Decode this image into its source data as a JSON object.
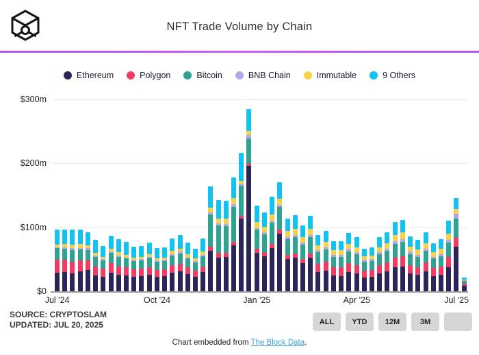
{
  "header": {
    "title": "NFT Trade Volume by Chain"
  },
  "legend": [
    {
      "name": "Ethereum",
      "color": "#2B2559"
    },
    {
      "name": "Polygon",
      "color": "#F23B63"
    },
    {
      "name": "Bitcoin",
      "color": "#2FA392"
    },
    {
      "name": "BNB Chain",
      "color": "#B3A8E3"
    },
    {
      "name": "Immutable",
      "color": "#F6D24A"
    },
    {
      "name": "9 Others",
      "color": "#12C2F0"
    }
  ],
  "chart_data": {
    "type": "bar",
    "stacked": true,
    "title": "NFT Trade Volume by Chain",
    "unit": "millions USD per week",
    "ylim": [
      0,
      300
    ],
    "grid": "horizontal",
    "legend_position": "top",
    "y_ticks": [
      {
        "value": 0,
        "label": "$0"
      },
      {
        "value": 100,
        "label": "$100m"
      },
      {
        "value": 200,
        "label": "$200m"
      },
      {
        "value": 300,
        "label": "$300m"
      }
    ],
    "x_ticks": [
      {
        "index": 0,
        "label": "Jul '24"
      },
      {
        "index": 13,
        "label": "Oct '24"
      },
      {
        "index": 26,
        "label": "Jan '25"
      },
      {
        "index": 39,
        "label": "Apr '25"
      },
      {
        "index": 52,
        "label": "Jul '25"
      }
    ],
    "series_names": [
      "Ethereum",
      "Polygon",
      "Bitcoin",
      "BNB Chain",
      "Immutable",
      "9 Others"
    ],
    "series_colors": [
      "#2B2559",
      "#F23B63",
      "#2FA392",
      "#B3A8E3",
      "#F6D24A",
      "#12C2F0"
    ],
    "bars": [
      [
        29,
        20,
        18,
        2,
        4,
        24
      ],
      [
        30,
        19,
        17,
        3,
        5,
        23
      ],
      [
        28,
        18,
        18,
        3,
        6,
        24
      ],
      [
        31,
        17,
        17,
        3,
        6,
        23
      ],
      [
        33,
        15,
        16,
        3,
        5,
        20
      ],
      [
        25,
        14,
        15,
        2,
        4,
        20
      ],
      [
        23,
        12,
        13,
        2,
        4,
        17
      ],
      [
        29,
        15,
        16,
        2,
        5,
        20
      ],
      [
        26,
        13,
        15,
        2,
        5,
        20
      ],
      [
        25,
        12,
        14,
        2,
        4,
        20
      ],
      [
        23,
        11,
        13,
        2,
        4,
        17
      ],
      [
        24,
        11,
        13,
        2,
        4,
        17
      ],
      [
        26,
        12,
        14,
        2,
        4,
        18
      ],
      [
        23,
        10,
        13,
        2,
        4,
        16
      ],
      [
        24,
        10,
        13,
        2,
        4,
        16
      ],
      [
        29,
        12,
        15,
        2,
        5,
        20
      ],
      [
        31,
        12,
        16,
        3,
        5,
        21
      ],
      [
        27,
        10,
        14,
        2,
        5,
        18
      ],
      [
        23,
        9,
        13,
        2,
        4,
        16
      ],
      [
        30,
        9,
        16,
        2,
        5,
        21
      ],
      [
        63,
        7,
        50,
        3,
        8,
        33
      ],
      [
        53,
        7,
        43,
        3,
        8,
        29
      ],
      [
        54,
        6,
        42,
        3,
        9,
        27
      ],
      [
        72,
        5,
        55,
        4,
        10,
        32
      ],
      [
        114,
        4,
        47,
        3,
        5,
        44
      ],
      [
        196,
        3,
        40,
        5,
        7,
        34
      ],
      [
        60,
        6,
        30,
        3,
        9,
        26
      ],
      [
        55,
        6,
        28,
        3,
        9,
        22
      ],
      [
        67,
        7,
        33,
        3,
        10,
        28
      ],
      [
        90,
        6,
        36,
        3,
        10,
        25
      ],
      [
        50,
        7,
        25,
        3,
        9,
        20
      ],
      [
        52,
        7,
        26,
        3,
        10,
        21
      ],
      [
        44,
        6,
        23,
        3,
        9,
        18
      ],
      [
        53,
        6,
        26,
        3,
        9,
        21
      ],
      [
        30,
        13,
        18,
        3,
        8,
        16
      ],
      [
        32,
        14,
        19,
        4,
        8,
        17
      ],
      [
        25,
        13,
        16,
        3,
        7,
        14
      ],
      [
        24,
        14,
        16,
        3,
        7,
        14
      ],
      [
        30,
        14,
        18,
        4,
        8,
        17
      ],
      [
        28,
        13,
        17,
        3,
        8,
        16
      ],
      [
        21,
        11,
        14,
        3,
        6,
        12
      ],
      [
        22,
        11,
        14,
        3,
        6,
        13
      ],
      [
        28,
        13,
        17,
        3,
        8,
        16
      ],
      [
        31,
        14,
        18,
        4,
        8,
        17
      ],
      [
        37,
        16,
        21,
        4,
        10,
        20
      ],
      [
        39,
        16,
        22,
        5,
        10,
        20
      ],
      [
        28,
        13,
        17,
        4,
        8,
        16
      ],
      [
        26,
        12,
        16,
        3,
        8,
        15
      ],
      [
        31,
        14,
        18,
        4,
        8,
        17
      ],
      [
        24,
        12,
        15,
        3,
        7,
        14
      ],
      [
        26,
        13,
        16,
        3,
        8,
        15
      ],
      [
        38,
        16,
        22,
        4,
        10,
        20
      ],
      [
        70,
        14,
        30,
        7,
        8,
        17
      ],
      [
        9,
        3,
        4,
        1,
        1,
        3
      ]
    ]
  },
  "footer": {
    "source_line1": "SOURCE: CRYPTOSLAM",
    "source_line2": "UPDATED: JUL 20, 2025",
    "range_buttons": [
      "ALL",
      "YTD",
      "12M",
      "3M",
      ""
    ],
    "embed_prefix": "Chart embedded from ",
    "embed_link": "The Block Data",
    "embed_suffix": "."
  },
  "colors": {
    "divider": "#C55BF1",
    "gridline": "#E9E9E9",
    "baseline": "#9A9A9A",
    "button_bg": "#D6D6D6",
    "link": "#3EA4DF"
  }
}
